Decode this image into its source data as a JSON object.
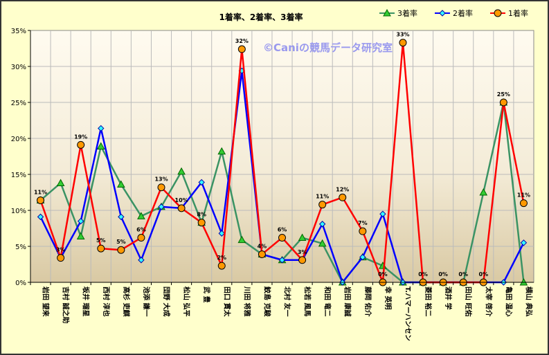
{
  "chart_data": {
    "type": "line",
    "title": "1着率、2着率、3着率",
    "watermark": "©Caniの競馬データ研究室",
    "yticks": [
      "0%",
      "5%",
      "10%",
      "15%",
      "20%",
      "25%",
      "30%",
      "35%"
    ],
    "ylim": [
      0,
      35
    ],
    "grid": true,
    "legend_placement": "top-right",
    "categories": [
      "岩田 望来",
      "吉村 誠之助",
      "坂井 瑠星",
      "西村 淳也",
      "高杉 吏麒",
      "池添 謙一",
      "団野 大成",
      "松山 弘平",
      "武 豊",
      "田口 貫太",
      "川田 将雅",
      "鮫島 克駿",
      "北村 友一",
      "松若 風馬",
      "和田 竜二",
      "岩田 康誠",
      "藤岡 佑介",
      "幸 英明",
      "T.ハマーハンセン",
      "菱田 裕二",
      "酒井 学",
      "田山 旺佑",
      "太宰 啓介",
      "亀田 温心",
      "横山 典弘"
    ],
    "series": [
      {
        "name": "3着率",
        "color": "#3a9364",
        "marker": "triangle",
        "values": [
          11.4,
          13.8,
          6.4,
          18.9,
          13.6,
          9.2,
          10.5,
          15.4,
          8.3,
          18.2,
          5.9,
          3.9,
          3.1,
          6.2,
          5.4,
          0,
          3.5,
          2.3,
          0,
          0,
          0,
          0,
          12.5,
          25.0,
          0
        ]
      },
      {
        "name": "2着率",
        "color": "#0000ff",
        "marker": "diamond",
        "values": [
          9.1,
          3.4,
          8.5,
          21.4,
          9.1,
          3.1,
          10.5,
          10.3,
          13.9,
          6.8,
          29.4,
          3.9,
          3.1,
          3.1,
          8.1,
          0,
          3.5,
          9.5,
          0,
          0,
          0,
          0,
          0,
          0,
          5.5
        ]
      },
      {
        "name": "1着率",
        "color": "#ff0000",
        "marker": "circle",
        "values": [
          11.4,
          3.4,
          19.1,
          4.7,
          4.5,
          6.2,
          13.2,
          10.3,
          8.3,
          2.3,
          32.4,
          3.9,
          6.2,
          3.1,
          10.8,
          11.8,
          7.1,
          0,
          33.3,
          0,
          0,
          0,
          0,
          25.0,
          11.0
        ],
        "data_labels": [
          "11%",
          "3%",
          "19%",
          "5%",
          "5%",
          "6%",
          "13%",
          "10%",
          "8%",
          "2%",
          "32%",
          "4%",
          "6%",
          "3%",
          "11%",
          "12%",
          "7%",
          "0%",
          "33%",
          "0%",
          "0%",
          "0%",
          "0%",
          "25%",
          "11%"
        ]
      }
    ]
  }
}
